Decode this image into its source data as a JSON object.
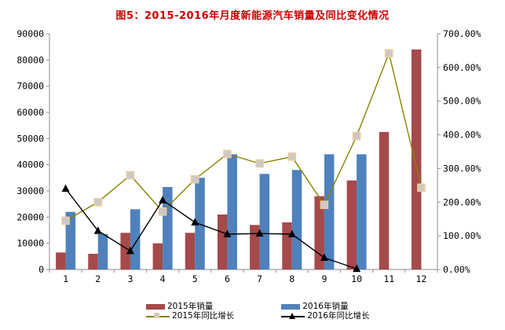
{
  "title": {
    "text": "图5：2015-2016年月度新能源汽车销量及同比变化情况",
    "color": "#CC0000"
  },
  "colors": {
    "bar_2015": "#A6494B",
    "bar_2016": "#4F81BD",
    "line_2015": "#8B8000",
    "line_2016": "#000000",
    "marker_square_fill": "#C9C9C9",
    "marker_square_border": "#EDCB9C",
    "axis_line": "#A0A0A0"
  },
  "legend": {
    "items": [
      {
        "label": "2015年销量",
        "kind": "bar",
        "color": "#A6494B"
      },
      {
        "label": "2016年销量",
        "kind": "bar",
        "color": "#4F81BD"
      },
      {
        "label": "2015年同比增长",
        "kind": "line-square",
        "color": "#8B8000"
      },
      {
        "label": "2016年同比增长",
        "kind": "line-triangle",
        "color": "#000000"
      }
    ]
  },
  "chart_data": {
    "type": "bar",
    "subtype": "combo-bar-line-dual-axis",
    "title": "图5：2015-2016年月度新能源汽车销量及同比变化情况",
    "categories": [
      "1",
      "2",
      "3",
      "4",
      "5",
      "6",
      "7",
      "8",
      "9",
      "10",
      "11",
      "12"
    ],
    "xlabel": "",
    "ylabel_left": "",
    "ylabel_right": "",
    "left_axis": {
      "min": 0,
      "max": 90000,
      "step": 10000,
      "tick_labels": [
        "0",
        "10000",
        "20000",
        "30000",
        "40000",
        "50000",
        "60000",
        "70000",
        "80000",
        "90000"
      ]
    },
    "right_axis": {
      "min": 0,
      "max": 700,
      "step": 100,
      "tick_labels": [
        "0.00%",
        "100.00%",
        "200.00%",
        "300.00%",
        "400.00%",
        "500.00%",
        "600.00%",
        "700.00%"
      ]
    },
    "grid": false,
    "legend_position": "bottom",
    "series": [
      {
        "name": "2015年销量",
        "type": "bar",
        "axis": "left",
        "color": "#A6494B",
        "values": [
          6500,
          6000,
          14000,
          10000,
          14000,
          21000,
          17000,
          18000,
          28000,
          34000,
          52500,
          84000
        ]
      },
      {
        "name": "2016年销量",
        "type": "bar",
        "axis": "left",
        "color": "#4F81BD",
        "values": [
          22000,
          13500,
          23000,
          31500,
          35000,
          44000,
          36500,
          38000,
          44000,
          44000,
          null,
          null
        ]
      },
      {
        "name": "2015年同比增长",
        "type": "line",
        "axis": "right",
        "marker": "square",
        "color": "#8B8000",
        "values_pct": [
          145,
          200,
          280,
          172,
          268,
          343,
          315,
          335,
          192,
          396,
          642,
          243
        ]
      },
      {
        "name": "2016年同比增长",
        "type": "line",
        "axis": "right",
        "marker": "triangle",
        "color": "#000000",
        "values_pct": [
          240,
          115,
          55,
          206,
          140,
          105,
          107,
          105,
          35,
          2,
          null,
          null
        ]
      }
    ]
  }
}
